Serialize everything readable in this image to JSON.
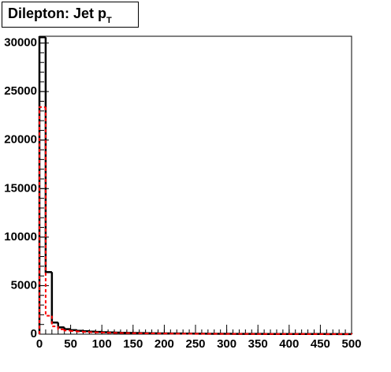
{
  "chart_data": {
    "type": "histogram",
    "title": "Dilepton: Jet p",
    "title_subscript": "T",
    "bins": [
      0,
      10,
      20,
      30,
      40,
      50,
      60,
      70,
      80,
      90,
      100,
      110,
      120,
      130,
      140,
      150,
      160,
      170,
      180,
      190,
      200,
      210,
      220,
      230,
      240,
      250,
      260,
      270,
      280,
      290,
      300,
      310,
      320,
      330,
      340,
      350,
      360,
      370,
      380,
      390,
      400,
      410,
      420,
      430,
      440,
      450,
      460,
      470,
      480,
      490,
      500
    ],
    "series": [
      {
        "color": "#000000",
        "dashed": false,
        "values": [
          30600,
          6400,
          1200,
          700,
          520,
          420,
          350,
          300,
          260,
          230,
          200,
          180,
          160,
          145,
          130,
          120,
          110,
          100,
          92,
          85,
          78,
          72,
          66,
          60,
          56,
          52,
          48,
          45,
          42,
          39,
          36,
          34,
          32,
          30,
          28,
          26,
          25,
          24,
          23,
          22,
          21,
          20,
          19,
          18,
          17,
          16,
          15,
          15,
          14,
          14
        ]
      },
      {
        "color": "#ff0000",
        "dashed": true,
        "values": [
          23400,
          1900,
          800,
          500,
          380,
          320,
          270,
          230,
          200,
          180,
          160,
          145,
          130,
          118,
          108,
          100,
          92,
          85,
          78,
          72,
          66,
          60,
          55,
          51,
          47,
          44,
          41,
          38,
          36,
          34,
          32,
          30,
          28,
          26,
          25,
          24,
          22,
          21,
          20,
          19,
          18,
          17,
          16,
          15,
          15,
          14,
          13,
          13,
          12,
          12
        ]
      }
    ],
    "xlim": [
      0,
      500
    ],
    "xticks": [
      0,
      50,
      100,
      150,
      200,
      250,
      300,
      350,
      400,
      450,
      500
    ],
    "ylim": [
      0,
      30700
    ],
    "yticks": [
      0,
      5000,
      10000,
      15000,
      20000,
      25000,
      30000
    ]
  }
}
